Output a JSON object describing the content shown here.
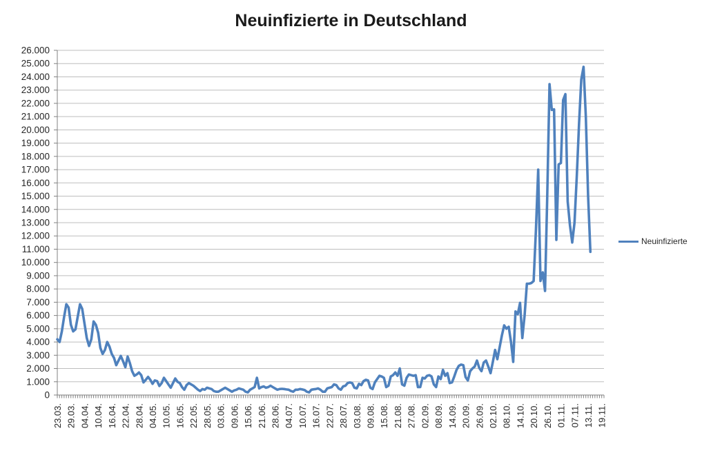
{
  "chart": {
    "title": "Neuinfizierte in Deutschland"
  },
  "legend": {
    "label": "Neuinfizierte"
  },
  "colors": {
    "series": "#4F81BD",
    "gridline": "#BDBDBD",
    "axis": "#808080",
    "text": "#262626",
    "title_text": "#1A1A1A",
    "background": "#FFFFFF"
  },
  "chart_data": {
    "type": "line",
    "title": "Neuinfizierte in Deutschland",
    "legend_entries": [
      "Neuinfizierte"
    ],
    "legend_position": "right",
    "grid": true,
    "xlabel": "",
    "ylabel": "",
    "ylim": [
      0,
      26000
    ],
    "y_tick_step": 1000,
    "y_tick_labels": [
      "26.000",
      "25.000",
      "24.000",
      "23.000",
      "22.000",
      "21.000",
      "20.000",
      "19.000",
      "18.000",
      "17.000",
      "16.000",
      "15.000",
      "14.000",
      "13.000",
      "12.000",
      "11.000",
      "10.000",
      "9.000",
      "8.000",
      "7.000",
      "6.000",
      "5.000",
      "4.000",
      "3.000",
      "2.000",
      "1.000",
      "0"
    ],
    "x_tick_labels": [
      "23.03.",
      "29.03.",
      "04.04.",
      "10.04.",
      "16.04.",
      "22.04.",
      "28.04.",
      "04.05.",
      "10.05.",
      "16.05.",
      "22.05.",
      "28.05.",
      "03.06.",
      "09.06.",
      "15.06.",
      "21.06.",
      "28.06.",
      "04.07.",
      "10.07.",
      "16.07.",
      "22.07.",
      "28.07.",
      "03.08.",
      "09.08.",
      "15.08.",
      "21.08.",
      "27.08.",
      "02.09.",
      "08.09.",
      "14.09.",
      "20.09.",
      "26.09.",
      "02.10.",
      "08.10.",
      "14.10.",
      "20.10.",
      "26.10.",
      "01.11.",
      "07.11.",
      "13.11.",
      "19.11."
    ],
    "points_per_x_tick": 6,
    "x_slot_count": 242,
    "x_unit": "day",
    "x_range_note": "daily values from 23.03. to 19.11., axis extends a few empty days past last data point",
    "series": [
      {
        "name": "Neuinfizierte",
        "color": "#4F81BD",
        "values": [
          4200,
          4000,
          4800,
          5900,
          6850,
          6600,
          5300,
          4800,
          4950,
          5900,
          6850,
          6500,
          5400,
          4300,
          3700,
          4200,
          5550,
          5300,
          4700,
          3550,
          3100,
          3400,
          4000,
          3650,
          3100,
          2800,
          2250,
          2600,
          2950,
          2550,
          2100,
          2900,
          2400,
          1800,
          1450,
          1550,
          1700,
          1500,
          950,
          1150,
          1370,
          1150,
          850,
          1100,
          1050,
          680,
          900,
          1300,
          1050,
          800,
          550,
          900,
          1250,
          1000,
          900,
          600,
          400,
          750,
          900,
          800,
          700,
          550,
          400,
          300,
          450,
          400,
          550,
          500,
          450,
          300,
          250,
          250,
          350,
          450,
          550,
          450,
          350,
          250,
          350,
          400,
          500,
          450,
          400,
          250,
          200,
          400,
          500,
          600,
          1300,
          500,
          600,
          650,
          550,
          600,
          700,
          600,
          500,
          400,
          450,
          470,
          450,
          420,
          400,
          300,
          250,
          400,
          400,
          450,
          420,
          380,
          250,
          200,
          400,
          430,
          450,
          500,
          400,
          250,
          250,
          500,
          550,
          600,
          800,
          750,
          500,
          400,
          650,
          700,
          900,
          950,
          900,
          550,
          500,
          850,
          750,
          1050,
          1150,
          1100,
          550,
          450,
          950,
          1200,
          1450,
          1400,
          1300,
          600,
          700,
          1400,
          1500,
          1700,
          1450,
          2000,
          800,
          700,
          1300,
          1550,
          1500,
          1450,
          1500,
          600,
          600,
          1300,
          1250,
          1450,
          1500,
          1400,
          800,
          600,
          1400,
          1200,
          1900,
          1450,
          1650,
          900,
          950,
          1400,
          1900,
          2200,
          2300,
          2250,
          1350,
          1100,
          1800,
          2000,
          2150,
          2600,
          2050,
          1800,
          2450,
          2600,
          2150,
          1650,
          2500,
          3400,
          2700,
          3600,
          4500,
          5250,
          5000,
          5150,
          4000,
          2500,
          6300,
          6100,
          6950,
          4300,
          6000,
          8400,
          8400,
          8450,
          8600,
          12450,
          17000,
          8600,
          9250,
          7850,
          15000,
          23450,
          21500,
          21550,
          11700,
          17400,
          17500,
          22250,
          22700,
          14600,
          12800,
          11500,
          13000,
          16500,
          20500,
          23800,
          24750,
          21000,
          15000,
          10800
        ]
      }
    ]
  }
}
